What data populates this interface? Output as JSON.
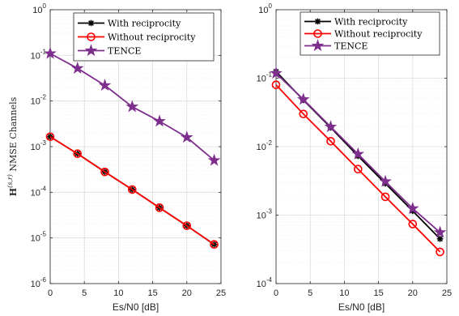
{
  "chart_data": [
    {
      "type": "line",
      "yscale": "log",
      "xlim": [
        0,
        25
      ],
      "ylim": [
        1e-06,
        1
      ],
      "grid": true,
      "legend_position": "top-right",
      "xlabel": "Es/N0 [dB]",
      "ylabel": "H(s,r) NMSE Channels",
      "xticks": [
        "0",
        "5",
        "10",
        "15",
        "20",
        "25"
      ],
      "ytick_exponents": [
        "0",
        "-1",
        "-2",
        "-3",
        "-4",
        "-5",
        "-6"
      ],
      "x": [
        0,
        4,
        8,
        12,
        16,
        20,
        24
      ],
      "series": [
        {
          "name": "With reciprocity",
          "color": "#000000",
          "marker": "asterisk",
          "values": [
            0.00165,
            0.0007,
            0.00028,
            0.000115,
            4.6e-05,
            1.85e-05,
            7.2e-06
          ]
        },
        {
          "name": "Without reciprocity",
          "color": "#ff0000",
          "marker": "circle",
          "values": [
            0.00165,
            0.0007,
            0.00028,
            0.000115,
            4.6e-05,
            1.85e-05,
            7.2e-06
          ]
        },
        {
          "name": "TENCE",
          "color": "#7e2f8e",
          "marker": "star",
          "values": [
            0.11,
            0.052,
            0.022,
            0.0075,
            0.0036,
            0.0016,
            0.0005
          ]
        }
      ]
    },
    {
      "type": "line",
      "yscale": "log",
      "xlim": [
        0,
        25
      ],
      "ylim": [
        0.0001,
        1
      ],
      "grid": true,
      "legend_position": "top-right",
      "xlabel": "Es/N0 [dB]",
      "ylabel": "",
      "xticks": [
        "0",
        "5",
        "10",
        "15",
        "20",
        "25"
      ],
      "ytick_exponents": [
        "0",
        "-1",
        "-2",
        "-3",
        "-4"
      ],
      "x": [
        0,
        4,
        8,
        12,
        16,
        20,
        24
      ],
      "series": [
        {
          "name": "With reciprocity",
          "color": "#000000",
          "marker": "asterisk",
          "values": [
            0.125,
            0.048,
            0.019,
            0.0073,
            0.0029,
            0.00115,
            0.00045
          ]
        },
        {
          "name": "Without reciprocity",
          "color": "#ff0000",
          "marker": "circle",
          "values": [
            0.08,
            0.03,
            0.012,
            0.0047,
            0.00185,
            0.00074,
            0.00029
          ]
        },
        {
          "name": "TENCE",
          "color": "#7e2f8e",
          "marker": "star",
          "values": [
            0.118,
            0.049,
            0.0195,
            0.0078,
            0.0031,
            0.00125,
            0.00056
          ]
        }
      ]
    }
  ]
}
